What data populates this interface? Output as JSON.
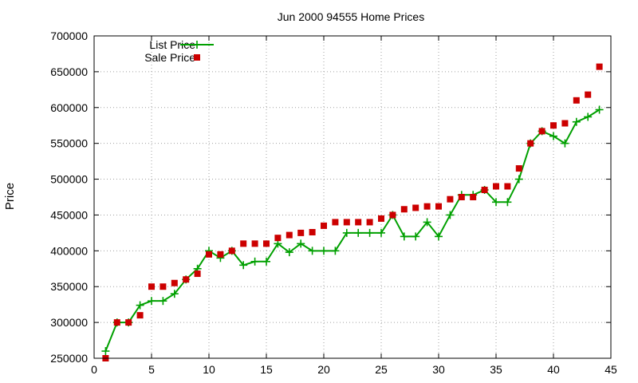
{
  "chart_data": {
    "type": "line",
    "title": "Jun 2000 94555 Home Prices",
    "xlabel": "",
    "ylabel": "Price",
    "xlim": [
      0,
      45
    ],
    "ylim": [
      250000,
      700000
    ],
    "x_ticks": [
      0,
      5,
      10,
      15,
      20,
      25,
      30,
      35,
      40,
      45
    ],
    "y_ticks": [
      250000,
      300000,
      350000,
      400000,
      450000,
      500000,
      550000,
      600000,
      650000,
      700000
    ],
    "grid": true,
    "legend_position": "top-left",
    "series": [
      {
        "name": "List Price",
        "style": "line-points",
        "marker": "plus",
        "color": "#00a000",
        "x": [
          1,
          2,
          3,
          4,
          5,
          6,
          7,
          8,
          9,
          10,
          11,
          12,
          13,
          14,
          15,
          16,
          17,
          18,
          19,
          20,
          21,
          22,
          23,
          24,
          25,
          26,
          27,
          28,
          29,
          30,
          31,
          32,
          33,
          34,
          35,
          36,
          37,
          38,
          39,
          40,
          41,
          42,
          43,
          44
        ],
        "y": [
          260000,
          300000,
          300000,
          324000,
          330000,
          330000,
          340000,
          360000,
          375000,
          400000,
          390000,
          400000,
          380000,
          385000,
          385000,
          410000,
          398000,
          410000,
          400000,
          400000,
          400000,
          425000,
          425000,
          425000,
          425000,
          450000,
          420000,
          420000,
          440000,
          420000,
          450000,
          478000,
          478000,
          485000,
          468000,
          468000,
          500000,
          550000,
          567000,
          560000,
          550000,
          580000,
          587000,
          597000
        ]
      },
      {
        "name": "Sale Price",
        "style": "points",
        "marker": "square",
        "color": "#cc0000",
        "x": [
          1,
          2,
          3,
          4,
          5,
          6,
          7,
          8,
          9,
          10,
          11,
          12,
          13,
          14,
          15,
          16,
          17,
          18,
          19,
          20,
          21,
          22,
          23,
          24,
          25,
          26,
          27,
          28,
          29,
          30,
          31,
          32,
          33,
          34,
          35,
          36,
          37,
          38,
          39,
          40,
          41,
          42,
          43,
          44
        ],
        "y": [
          250000,
          300000,
          300000,
          310000,
          350000,
          350000,
          355000,
          360000,
          368000,
          395000,
          395000,
          400000,
          410000,
          410000,
          410000,
          418000,
          422000,
          425000,
          426000,
          435000,
          440000,
          440000,
          440000,
          440000,
          445000,
          450000,
          458000,
          460000,
          462000,
          462000,
          472000,
          475000,
          475000,
          485000,
          490000,
          490000,
          515000,
          550000,
          567000,
          575000,
          578000,
          610000,
          618000,
          657000
        ]
      }
    ]
  }
}
